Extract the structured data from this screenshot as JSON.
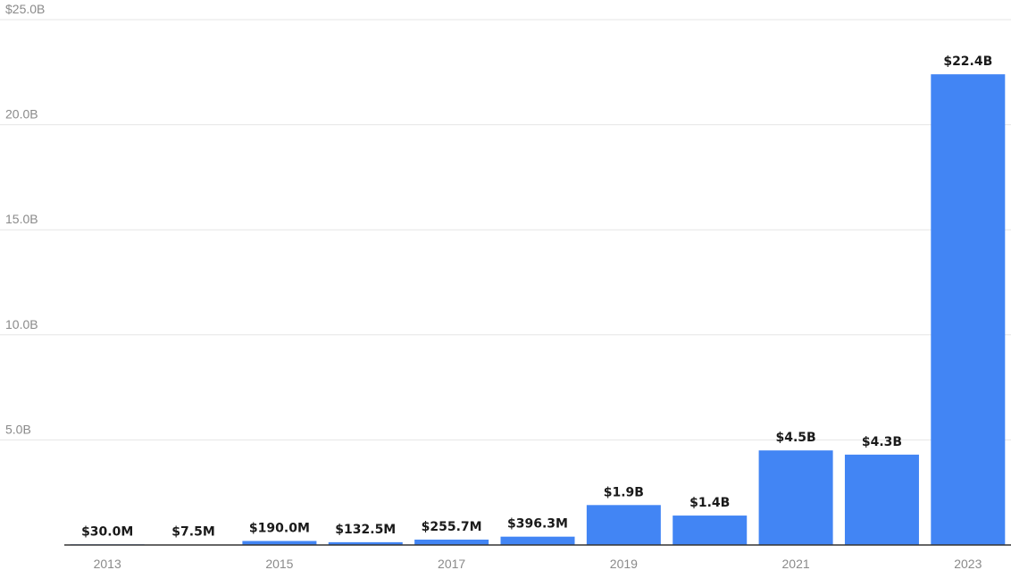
{
  "chart_data": {
    "type": "bar",
    "categories": [
      "2013",
      "2014",
      "2015",
      "2016",
      "2017",
      "2018",
      "2019",
      "2020",
      "2021",
      "2022",
      "2023"
    ],
    "values": [
      0.03,
      0.0075,
      0.19,
      0.1325,
      0.2557,
      0.3963,
      1.9,
      1.4,
      4.5,
      4.3,
      22.4
    ],
    "data_labels": [
      "$30.0M",
      "$7.5M",
      "$190.0M",
      "$132.5M",
      "$255.7M",
      "$396.3M",
      "$1.9B",
      "$1.4B",
      "$4.5B",
      "$4.3B",
      "$22.4B"
    ],
    "x_tick_labels": [
      "2013",
      "",
      "2015",
      "",
      "2017",
      "",
      "2019",
      "",
      "2021",
      "",
      "2023"
    ],
    "y_ticks": [
      5,
      10,
      15,
      20,
      25
    ],
    "y_tick_labels": [
      "5.0B",
      "10.0B",
      "15.0B",
      "20.0B",
      "$25.0B"
    ],
    "ylim": [
      0,
      25
    ],
    "title": "",
    "xlabel": "",
    "ylabel": "",
    "grid": true,
    "bar_color": "#4285f4"
  }
}
